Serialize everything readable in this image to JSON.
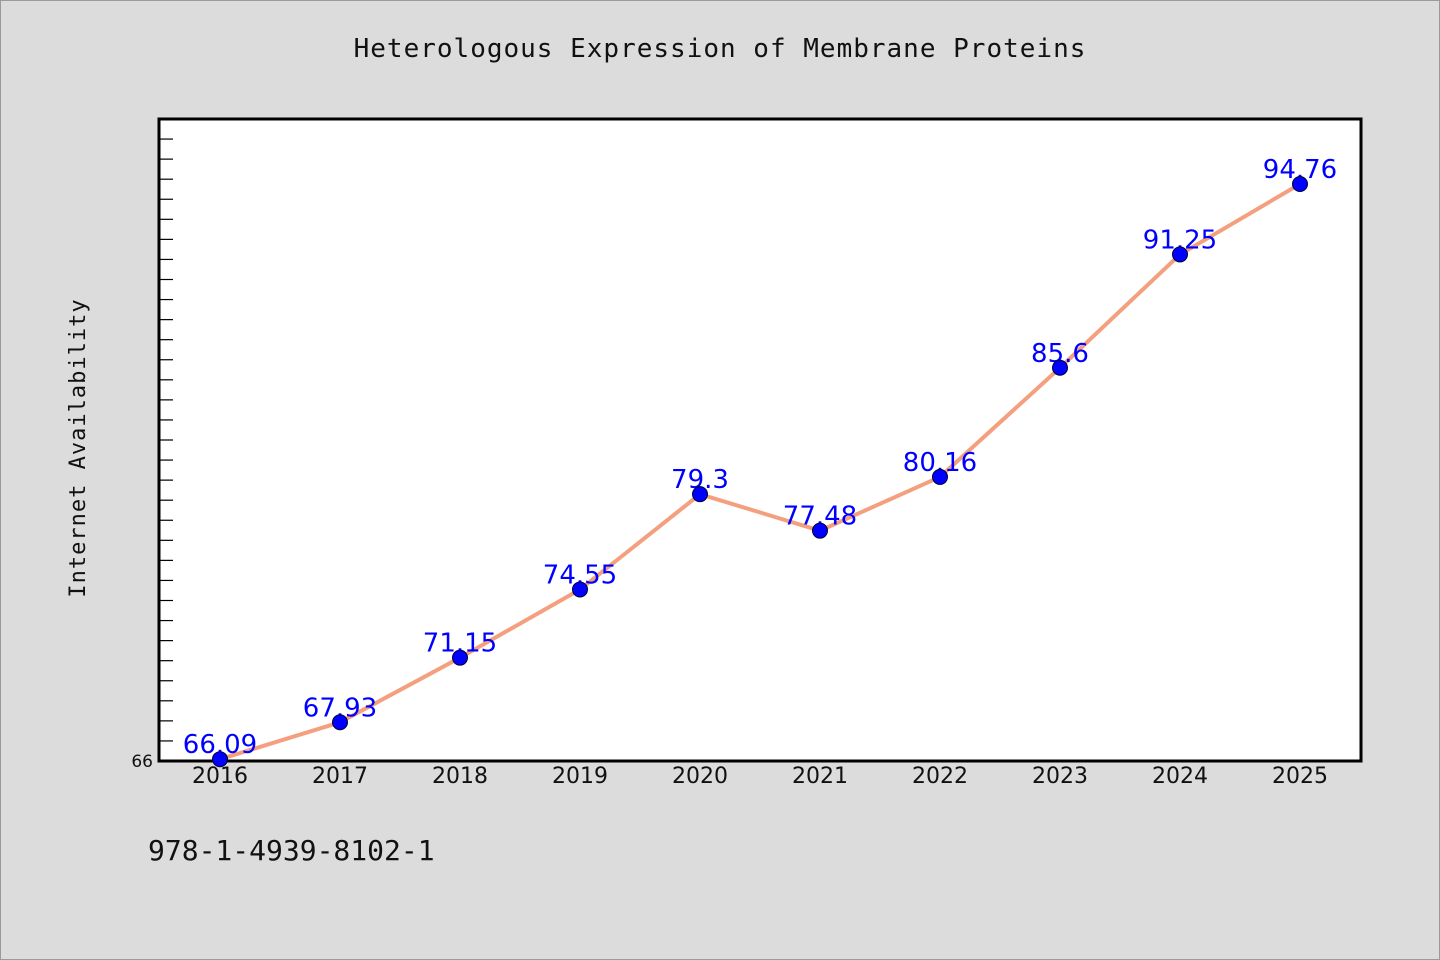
{
  "chart_data": {
    "type": "line",
    "title": "Heterologous Expression of Membrane Proteins",
    "xlabel": "",
    "ylabel": "Internet Availability",
    "categories": [
      "2016",
      "2017",
      "2018",
      "2019",
      "2020",
      "2021",
      "2022",
      "2023",
      "2024",
      "2025"
    ],
    "series": [
      {
        "values": [
          66.09,
          67.93,
          71.15,
          74.55,
          79.3,
          77.48,
          80.16,
          85.6,
          91.25,
          94.76
        ],
        "data_labels": [
          "66.09",
          "67.93",
          "71.15",
          "74.55",
          "79.3",
          "77.48",
          "80.16",
          "85.6",
          "91.25",
          "94.76"
        ]
      }
    ],
    "ylim": [
      66,
      98
    ],
    "y_tick_labels": [
      "66"
    ],
    "grid": false,
    "legend": "none",
    "line_color": "#f4a07f",
    "marker_color": "#0000ff",
    "label_color": "#0000ff"
  },
  "footer": {
    "code": "978-1-4939-8102-1"
  }
}
